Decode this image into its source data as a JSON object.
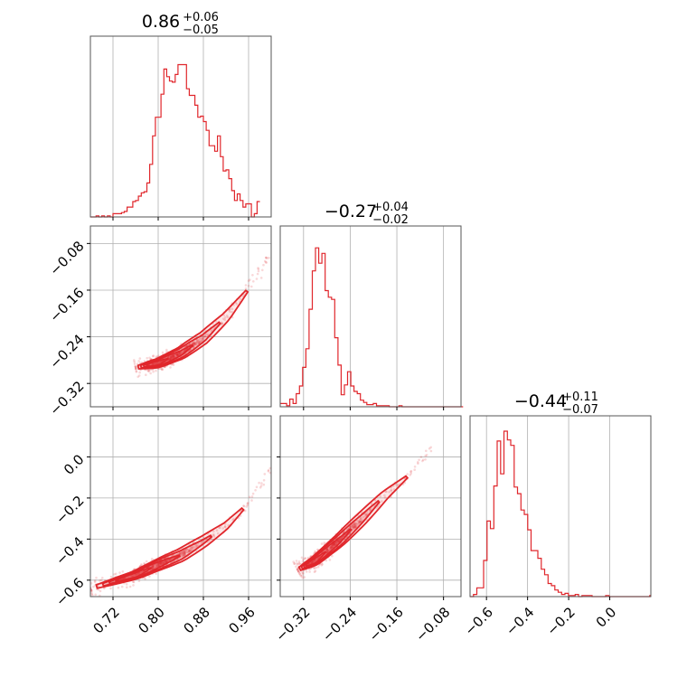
{
  "figure": {
    "type": "corner-plot",
    "colors": {
      "series": "#e0262b",
      "grid": "#b0b0b0",
      "frame": "#555555"
    }
  },
  "chart_data": {
    "type": "corner",
    "parameters": [
      {
        "title_main": "0.86",
        "title_plus": "+0.06",
        "title_minus": "−0.05",
        "range": [
          0.68,
          1.0
        ],
        "ticks": [
          0.72,
          0.8,
          0.88,
          0.96
        ],
        "tick_labels": [
          "0.72",
          "0.80",
          "0.88",
          "0.96"
        ],
        "hist": {
          "bin_start": 0.68,
          "bin_width": 0.005,
          "ymax": 165,
          "counts": [
            0,
            0,
            1,
            0,
            1,
            0,
            1,
            0,
            3,
            3,
            3,
            4,
            5,
            9,
            9,
            14,
            15,
            19,
            22,
            23,
            31,
            48,
            74,
            91,
            91,
            112,
            135,
            128,
            124,
            123,
            130,
            139,
            139,
            139,
            117,
            111,
            111,
            102,
            91,
            92,
            87,
            79,
            65,
            65,
            60,
            74,
            55,
            42,
            43,
            35,
            24,
            15,
            21,
            15,
            9,
            12,
            12,
            0,
            3,
            14
          ]
        }
      },
      {
        "title_main": "−0.27",
        "title_plus": "+0.04",
        "title_minus": "−0.02",
        "range": [
          -0.36,
          -0.05
        ],
        "ticks": [
          -0.32,
          -0.24,
          -0.16,
          -0.08
        ],
        "tick_labels": [
          "−0.32",
          "−0.24",
          "−0.16",
          "−0.08"
        ],
        "hist": {
          "bin_start": -0.36,
          "bin_width": 0.0055,
          "ymax": 165,
          "counts": [
            3,
            3,
            1,
            7,
            3,
            12,
            19,
            36,
            53,
            89,
            124,
            145,
            131,
            140,
            106,
            100,
            98,
            63,
            38,
            11,
            20,
            32,
            19,
            14,
            12,
            6,
            4,
            2,
            2,
            3,
            1,
            1,
            1,
            1,
            0,
            0,
            0,
            1,
            0,
            0,
            0,
            0,
            0,
            0,
            0,
            0,
            0,
            0,
            0,
            0,
            0,
            0,
            0,
            0,
            0,
            0,
            0,
            0
          ]
        }
      },
      {
        "title_main": "−0.44",
        "title_plus": "+0.11",
        "title_minus": "−0.07",
        "range": [
          -0.68,
          0.2
        ],
        "ticks": [
          -0.6,
          -0.4,
          -0.2,
          0.0
        ],
        "tick_labels": [
          "−0.6",
          "−0.4",
          "−0.2",
          "0.0"
        ],
        "hist": {
          "bin_start": -0.68,
          "bin_width": 0.0165,
          "ymax": 165,
          "counts": [
            0,
            2,
            8,
            8,
            33,
            69,
            62,
            101,
            142,
            112,
            151,
            143,
            138,
            100,
            94,
            79,
            75,
            61,
            42,
            42,
            35,
            25,
            20,
            12,
            10,
            6,
            4,
            2,
            3,
            1,
            1,
            2,
            0,
            1,
            1,
            1,
            0,
            0,
            0,
            0,
            1,
            0,
            0,
            0,
            0,
            0,
            0,
            0,
            0,
            0,
            0,
            0,
            0,
            1
          ]
        }
      }
    ],
    "pairs": [
      {
        "x_param": 0,
        "y_param": 1,
        "curve": [
          [
            0.76,
            -0.293
          ],
          [
            0.8,
            -0.285
          ],
          [
            0.84,
            -0.268
          ],
          [
            0.88,
            -0.242
          ],
          [
            0.92,
            -0.206
          ],
          [
            0.96,
            -0.158
          ],
          [
            1.0,
            -0.095
          ]
        ]
      },
      {
        "x_param": 0,
        "y_param": 2,
        "curve": [
          [
            0.68,
            -0.64
          ],
          [
            0.76,
            -0.575
          ],
          [
            0.8,
            -0.525
          ],
          [
            0.84,
            -0.478
          ],
          [
            0.88,
            -0.412
          ],
          [
            0.92,
            -0.335
          ],
          [
            0.96,
            -0.225
          ],
          [
            1.0,
            -0.05
          ]
        ]
      },
      {
        "x_param": 1,
        "y_param": 2,
        "curve": [
          [
            -0.33,
            -0.55
          ],
          [
            -0.3,
            -0.505
          ],
          [
            -0.26,
            -0.41
          ],
          [
            -0.22,
            -0.3
          ],
          [
            -0.18,
            -0.185
          ],
          [
            -0.14,
            -0.09
          ],
          [
            -0.1,
            0.05
          ]
        ]
      }
    ],
    "grid": true
  }
}
